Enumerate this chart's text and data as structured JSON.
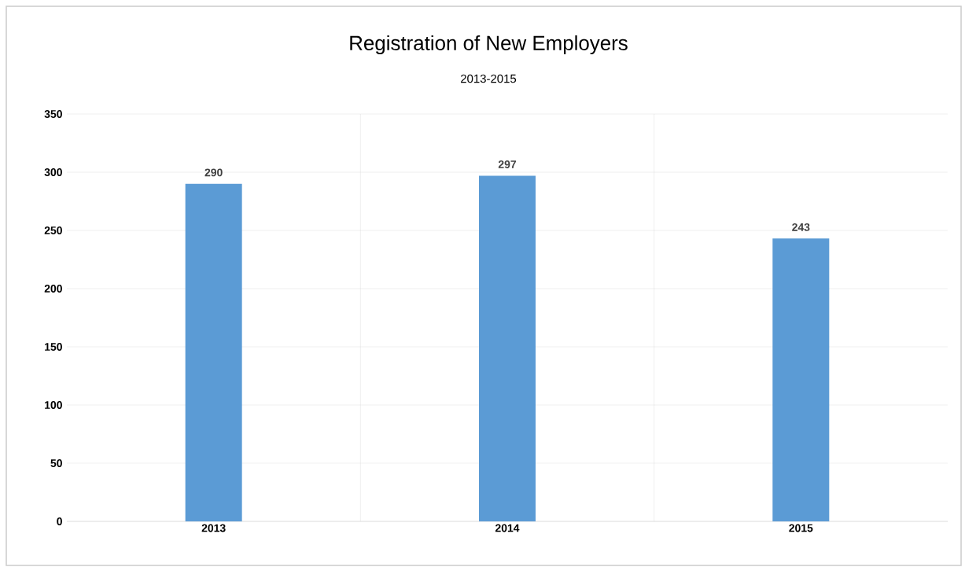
{
  "chart_data": {
    "type": "bar",
    "title": "Registration of New Employers",
    "subtitle": "2013-2015",
    "categories": [
      "2013",
      "2014",
      "2015"
    ],
    "values": [
      290,
      297,
      243
    ],
    "color": "#5b9bd5",
    "ylim": [
      0,
      350
    ],
    "yticks": [
      0,
      50,
      100,
      150,
      200,
      250,
      300,
      350
    ],
    "grid": true,
    "data_labels": true
  }
}
